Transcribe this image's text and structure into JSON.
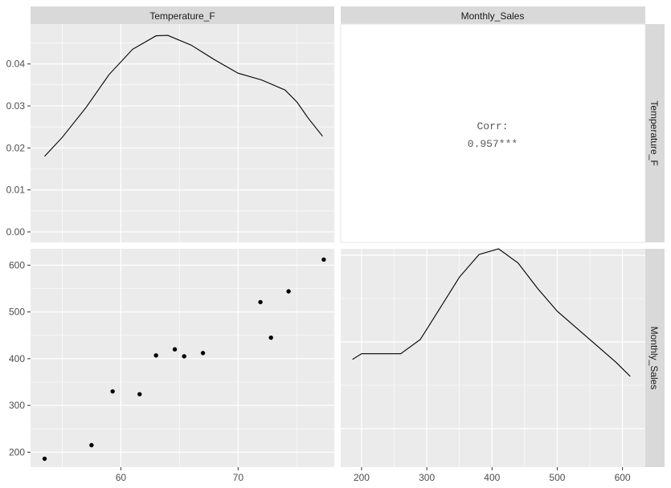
{
  "chart_data": {
    "type": "scatter",
    "variables": [
      "Temperature_F",
      "Monthly_Sales"
    ],
    "strips": {
      "top": [
        "Temperature_F",
        "Monthly_Sales"
      ],
      "right": [
        "Temperature_F",
        "Monthly_Sales"
      ]
    },
    "axes": {
      "temperature": {
        "range": [
          52.3,
          78.2
        ],
        "ticks": [
          60,
          70
        ]
      },
      "sales": {
        "range": [
          168,
          635
        ],
        "ticks": [
          200,
          300,
          400,
          500,
          600
        ]
      },
      "density": {
        "range": [
          -0.0025,
          0.0495
        ],
        "ticks": [
          0.0,
          0.01,
          0.02,
          0.03,
          0.04
        ],
        "tick_labels": [
          "0.00",
          "0.01",
          "0.02",
          "0.03",
          "0.04"
        ]
      },
      "sales_density_range": [
        -0.0005,
        0.0072
      ]
    },
    "temperature_density": [
      [
        53.5,
        0.018
      ],
      [
        55,
        0.0225
      ],
      [
        57,
        0.0295
      ],
      [
        59,
        0.0375
      ],
      [
        61,
        0.0435
      ],
      [
        63,
        0.0467
      ],
      [
        64,
        0.0468
      ],
      [
        66,
        0.0445
      ],
      [
        68,
        0.041
      ],
      [
        70,
        0.0378
      ],
      [
        72,
        0.0362
      ],
      [
        74,
        0.0338
      ],
      [
        75,
        0.031
      ],
      [
        76,
        0.027
      ],
      [
        77.2,
        0.0228
      ]
    ],
    "scatter_points": [
      {
        "x": 53.5,
        "y": 186
      },
      {
        "x": 57.5,
        "y": 215
      },
      {
        "x": 59.3,
        "y": 330
      },
      {
        "x": 61.6,
        "y": 324
      },
      {
        "x": 63,
        "y": 407
      },
      {
        "x": 64.6,
        "y": 420
      },
      {
        "x": 65.4,
        "y": 405
      },
      {
        "x": 67,
        "y": 412
      },
      {
        "x": 71.9,
        "y": 521
      },
      {
        "x": 72.8,
        "y": 445
      },
      {
        "x": 74.3,
        "y": 544
      },
      {
        "x": 77.3,
        "y": 612
      }
    ],
    "sales_density": [
      [
        186,
        0.0033
      ],
      [
        200,
        0.0035
      ],
      [
        225,
        0.0035
      ],
      [
        260,
        0.0035
      ],
      [
        290,
        0.004
      ],
      [
        320,
        0.0051
      ],
      [
        350,
        0.0062
      ],
      [
        380,
        0.007
      ],
      [
        410,
        0.0072
      ],
      [
        440,
        0.0067
      ],
      [
        470,
        0.0058
      ],
      [
        500,
        0.005
      ],
      [
        530,
        0.0044
      ],
      [
        560,
        0.0038
      ],
      [
        590,
        0.0032
      ],
      [
        612,
        0.0027
      ]
    ],
    "correlation": {
      "label": "Corr:",
      "value": "0.957***"
    }
  }
}
